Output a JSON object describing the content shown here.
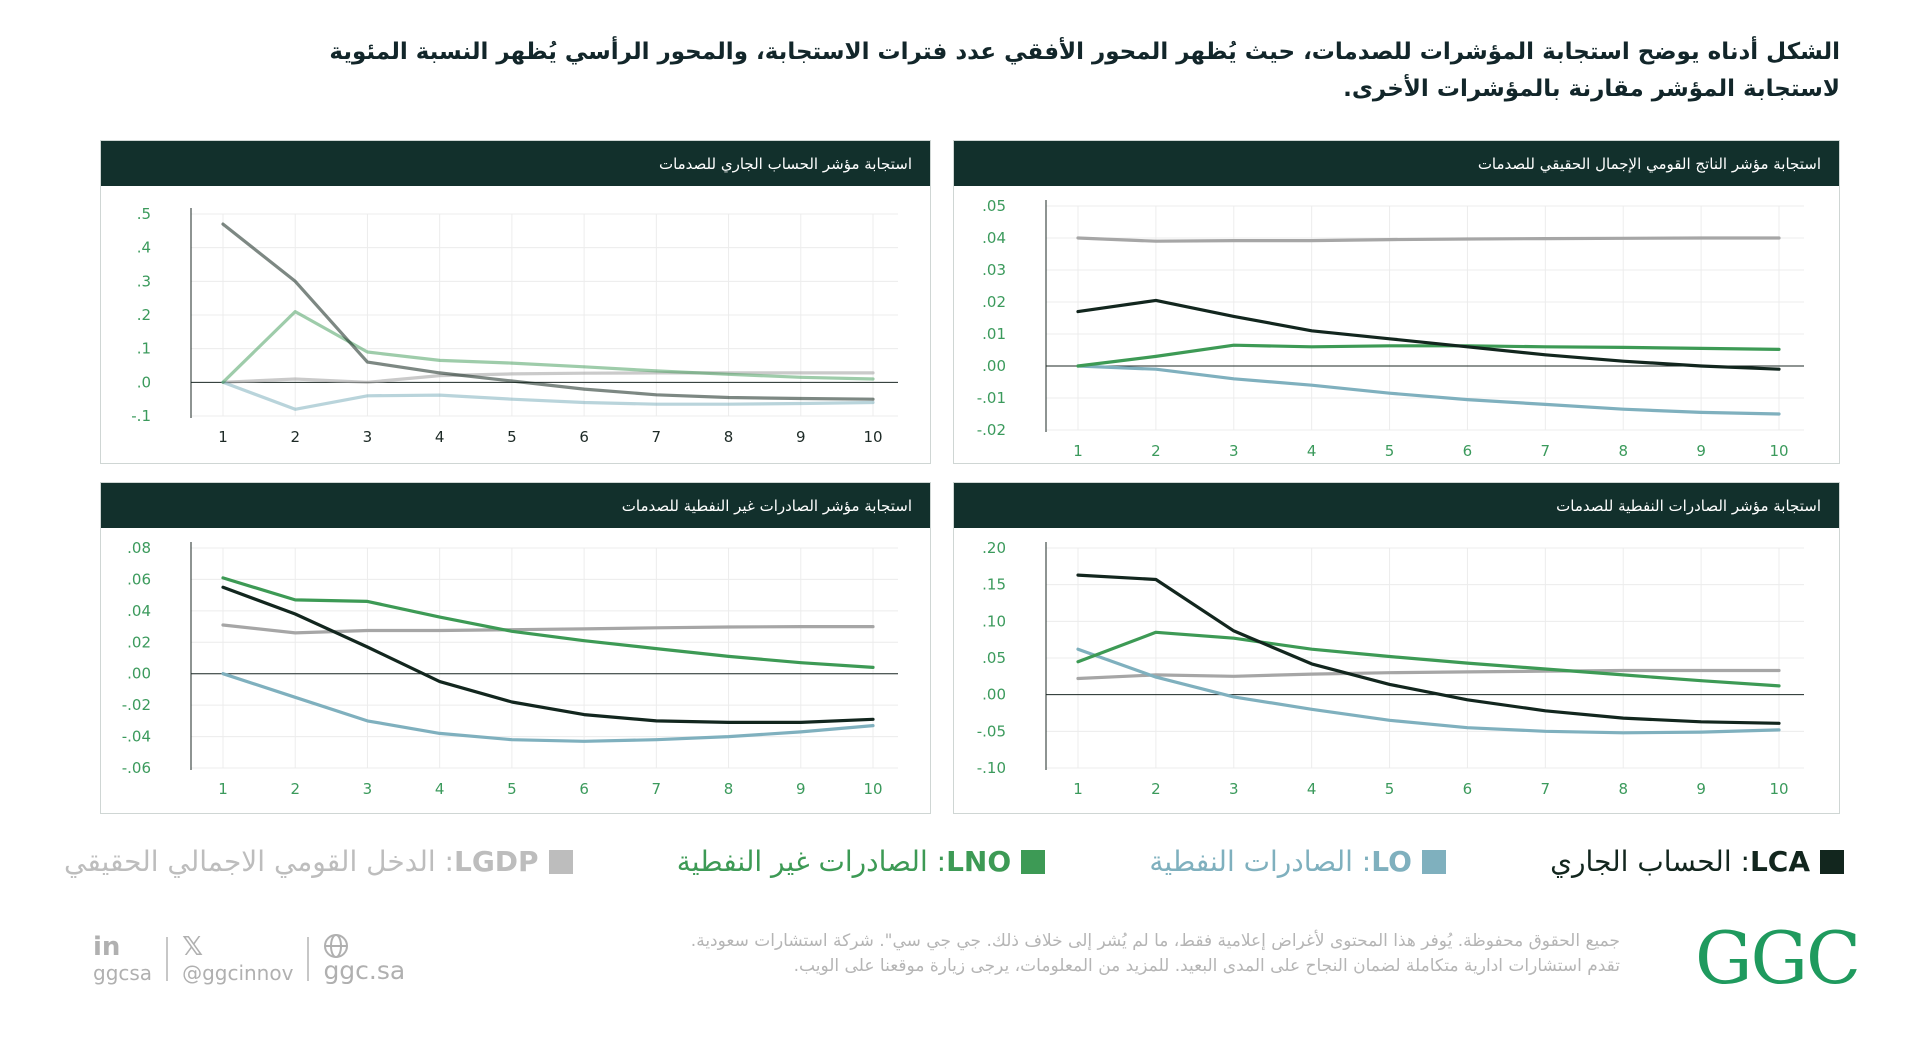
{
  "intro": {
    "line1": "الشكل أدناه يوضح استجابة المؤشرات للصدمات، حيث يُظهر المحور الأفقي عدد فترات الاستجابة، والمحور الرأسي يُظهر النسبة المئوية",
    "line2": "لاستجابة المؤشر مقارنة بالمؤشرات الأخرى."
  },
  "colors": {
    "LCA": "#12261e",
    "LO": "#7fb0be",
    "LNO": "#3d9a55",
    "LGDP": "#a6a6a6",
    "header_bg": "#12302c",
    "tick_text": "#3b9a5c",
    "footer_text": "#b5b5b5",
    "logo": "#1f9a5e"
  },
  "chart_data": [
    {
      "type": "line",
      "id": "current-account",
      "title": "استجابة مؤشر الحساب الجاري للصدمات",
      "x": [
        1,
        2,
        3,
        4,
        5,
        6,
        7,
        8,
        9,
        10
      ],
      "ylim": [
        -0.1,
        0.5
      ],
      "yticks": [
        -0.1,
        0.0,
        0.1,
        0.2,
        0.3,
        0.4,
        0.5
      ],
      "ytick_labels": [
        "-.1",
        ".0",
        ".1",
        ".2",
        ".3",
        ".4",
        ".5"
      ],
      "series": [
        {
          "name": "LGDP",
          "color": "#a6a6a6",
          "opacity": 0.6,
          "values": [
            0,
            0.01,
            0,
            0.02,
            0.025,
            0.027,
            0.028,
            0.028,
            0.028,
            0.028
          ]
        },
        {
          "name": "LO",
          "color": "#7fb0be",
          "opacity": 0.55,
          "values": [
            0,
            -0.08,
            -0.04,
            -0.038,
            -0.05,
            -0.06,
            -0.065,
            -0.065,
            -0.063,
            -0.06
          ]
        },
        {
          "name": "LNO",
          "color": "#3d9a55",
          "opacity": 0.5,
          "values": [
            0,
            0.21,
            0.09,
            0.065,
            0.057,
            0.046,
            0.034,
            0.024,
            0.015,
            0.01
          ]
        },
        {
          "name": "LCA",
          "color": "#12261e",
          "opacity": 0.55,
          "values": [
            0.47,
            0.3,
            0.06,
            0.028,
            0.004,
            -0.02,
            -0.037,
            -0.045,
            -0.048,
            -0.05
          ]
        }
      ]
    },
    {
      "type": "line",
      "id": "real-gdp",
      "title": "استجابة مؤشر  الناتج القومي الإجمال الحقيقي للصدمات",
      "x": [
        1,
        2,
        3,
        4,
        5,
        6,
        7,
        8,
        9,
        10
      ],
      "ylim": [
        -0.02,
        0.05
      ],
      "yticks": [
        -0.02,
        -0.01,
        0.0,
        0.01,
        0.02,
        0.03,
        0.04,
        0.05
      ],
      "ytick_labels": [
        "-.02",
        "-.01",
        ".00",
        ".01",
        ".02",
        ".03",
        ".04",
        ".05"
      ],
      "series": [
        {
          "name": "LGDP",
          "color": "#a6a6a6",
          "opacity": 1,
          "values": [
            0.04,
            0.039,
            0.0392,
            0.0392,
            0.0395,
            0.0397,
            0.0398,
            0.0399,
            0.04,
            0.04
          ]
        },
        {
          "name": "LO",
          "color": "#7fb0be",
          "opacity": 1,
          "values": [
            0,
            -0.001,
            -0.004,
            -0.006,
            -0.0085,
            -0.0105,
            -0.012,
            -0.0135,
            -0.0145,
            -0.015
          ]
        },
        {
          "name": "LNO",
          "color": "#3d9a55",
          "opacity": 1,
          "values": [
            0,
            0.003,
            0.0065,
            0.006,
            0.0063,
            0.0063,
            0.006,
            0.0058,
            0.0055,
            0.0052
          ]
        },
        {
          "name": "LCA",
          "color": "#12261e",
          "opacity": 1,
          "values": [
            0.017,
            0.0205,
            0.0155,
            0.011,
            0.0085,
            0.006,
            0.0035,
            0.0015,
            0.0,
            -0.001
          ]
        }
      ]
    },
    {
      "type": "line",
      "id": "non-oil-exports",
      "title": "استجابة مؤشر الصادرات غير النفطية للصدمات",
      "x": [
        1,
        2,
        3,
        4,
        5,
        6,
        7,
        8,
        9,
        10
      ],
      "ylim": [
        -0.06,
        0.08
      ],
      "yticks": [
        -0.06,
        -0.04,
        -0.02,
        0.0,
        0.02,
        0.04,
        0.06,
        0.08
      ],
      "ytick_labels": [
        "-.06",
        "-.04",
        "-.02",
        ".00",
        ".02",
        ".04",
        ".06",
        ".08"
      ],
      "series": [
        {
          "name": "LGDP",
          "color": "#a6a6a6",
          "opacity": 1,
          "values": [
            0.031,
            0.026,
            0.0275,
            0.0275,
            0.028,
            0.0285,
            0.0292,
            0.0297,
            0.03,
            0.03
          ]
        },
        {
          "name": "LO",
          "color": "#7fb0be",
          "opacity": 1,
          "values": [
            0,
            -0.015,
            -0.03,
            -0.038,
            -0.042,
            -0.043,
            -0.042,
            -0.04,
            -0.037,
            -0.033
          ]
        },
        {
          "name": "LNO",
          "color": "#3d9a55",
          "opacity": 1,
          "values": [
            0.061,
            0.047,
            0.046,
            0.036,
            0.027,
            0.021,
            0.016,
            0.011,
            0.007,
            0.004
          ]
        },
        {
          "name": "LCA",
          "color": "#12261e",
          "opacity": 1,
          "values": [
            0.055,
            0.038,
            0.017,
            -0.005,
            -0.018,
            -0.026,
            -0.03,
            -0.031,
            -0.031,
            -0.029
          ]
        }
      ]
    },
    {
      "type": "line",
      "id": "oil-exports",
      "title": "استجابة مؤشر الصادرات  النفطية للصدمات",
      "x": [
        1,
        2,
        3,
        4,
        5,
        6,
        7,
        8,
        9,
        10
      ],
      "ylim": [
        -0.1,
        0.2
      ],
      "yticks": [
        -0.1,
        -0.05,
        0.0,
        0.05,
        0.1,
        0.15,
        0.2
      ],
      "ytick_labels": [
        "-.10",
        "-.05",
        ".00",
        ".05",
        ".10",
        ".15",
        ".20"
      ],
      "series": [
        {
          "name": "LGDP",
          "color": "#a6a6a6",
          "opacity": 1,
          "values": [
            0.022,
            0.027,
            0.025,
            0.028,
            0.03,
            0.031,
            0.032,
            0.033,
            0.033,
            0.033
          ]
        },
        {
          "name": "LO",
          "color": "#7fb0be",
          "opacity": 1,
          "values": [
            0.062,
            0.024,
            -0.003,
            -0.02,
            -0.035,
            -0.045,
            -0.05,
            -0.052,
            -0.051,
            -0.048
          ]
        },
        {
          "name": "LNO",
          "color": "#3d9a55",
          "opacity": 1,
          "values": [
            0.045,
            0.085,
            0.077,
            0.062,
            0.052,
            0.043,
            0.035,
            0.027,
            0.019,
            0.012
          ]
        },
        {
          "name": "LCA",
          "color": "#12261e",
          "opacity": 1,
          "values": [
            0.163,
            0.157,
            0.087,
            0.042,
            0.014,
            -0.007,
            -0.022,
            -0.032,
            -0.037,
            -0.039
          ]
        }
      ]
    }
  ],
  "legend": [
    {
      "code": "LCA",
      "label": ": الحساب الجاري",
      "color": "#12261e"
    },
    {
      "code": "LO",
      "label": ": الصادرات النفطية",
      "color": "#7fb0be"
    },
    {
      "code": "LNO",
      "label": ": الصادرات غير النفطية",
      "color": "#3d9a55"
    },
    {
      "code": "LGDP",
      "label": ": الدخل القومي الاجمالي الحقيقي",
      "color": "#bdbdbd"
    }
  ],
  "footer": {
    "line1": "جميع الحقوق محفوظة. يُوفر هذا المحتوى لأغراض إعلامية فقط، ما لم يُشر إلى خلاف ذلك.  جي جي سي\". شركة استشارات سعودية.",
    "line2": "تقدم استشارات ادارية متكاملة لضمان النجاح على المدى البعيد. للمزيد من المعلومات، يرجى زيارة موقعنا على الويب."
  },
  "logo": "GGC",
  "social": {
    "linkedin_icon": "in",
    "linkedin": "ggcsa",
    "x_icon": "𝕏",
    "x": "@ggcinnov",
    "web": "ggc.sa"
  }
}
